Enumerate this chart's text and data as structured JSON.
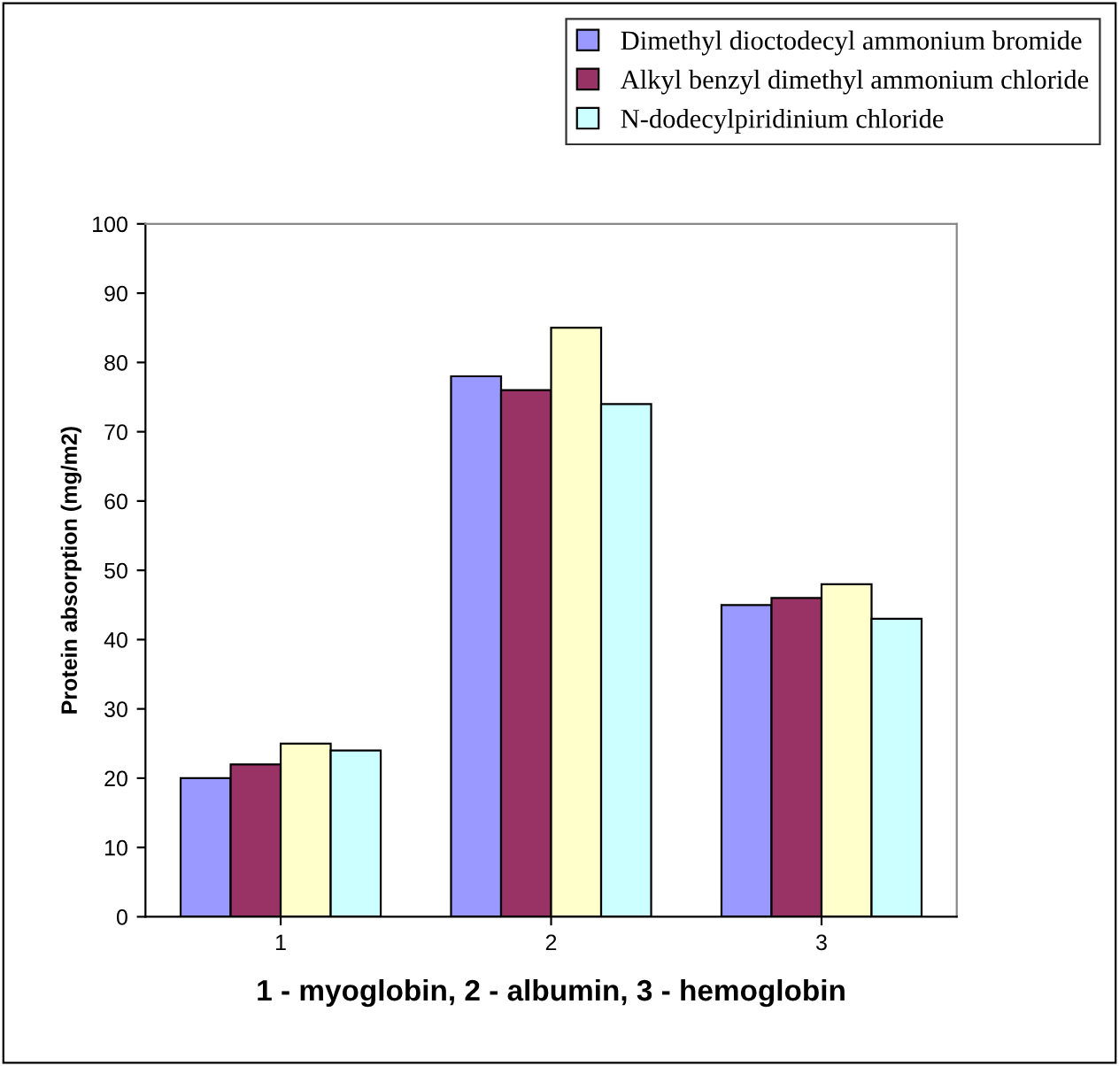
{
  "chart_data": {
    "type": "bar",
    "xlabel": "1 - myoglobin, 2 - albumin, 3 - hemoglobin",
    "ylabel": "Protein absorption (mg/m2)",
    "categories": [
      "1",
      "2",
      "3"
    ],
    "series": [
      {
        "name": "Dimethyl dioctodecyl ammonium bromide",
        "color": "#9999ff",
        "values": [
          20,
          78,
          45
        ]
      },
      {
        "name": "Alkyl benzyl dimethyl ammonium chloride",
        "color": "#993366",
        "values": [
          22,
          76,
          46
        ]
      },
      {
        "color": "#ffffcc",
        "values": [
          25,
          85,
          48
        ]
      },
      {
        "name": "N-dodecylpiridinium chloride",
        "color": "#ccffff",
        "values": [
          24,
          74,
          43
        ]
      }
    ],
    "ylim": [
      0,
      100
    ],
    "yticks": [
      0,
      10,
      20,
      30,
      40,
      50,
      60,
      70,
      80,
      90,
      100
    ],
    "grid": false,
    "legend": "top right"
  }
}
